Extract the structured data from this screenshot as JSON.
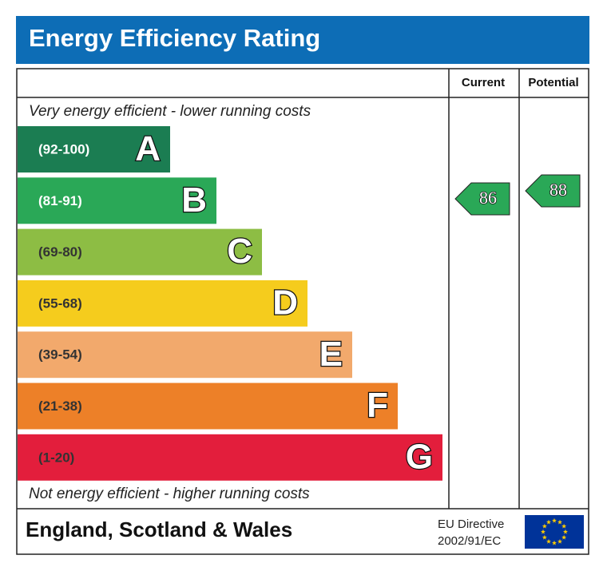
{
  "title": "Energy Efficiency Rating",
  "headers": [
    "Current",
    "Potential"
  ],
  "top_note": "Very energy efficient - lower running costs",
  "bottom_note": "Not energy efficient - higher running costs",
  "bands": [
    {
      "range": "(92-100)",
      "letter": "A",
      "color": "#1b7d52"
    },
    {
      "range": "(81-91)",
      "letter": "B",
      "color": "#2aa857"
    },
    {
      "range": "(69-80)",
      "letter": "C",
      "color": "#8dbd44"
    },
    {
      "range": "(55-68)",
      "letter": "D",
      "color": "#f5cc1d"
    },
    {
      "range": "(39-54)",
      "letter": "E",
      "color": "#f2a96c"
    },
    {
      "range": "(21-38)",
      "letter": "F",
      "color": "#ed8028"
    },
    {
      "range": "(1-20)",
      "letter": "G",
      "color": "#e31e3c"
    }
  ],
  "current": {
    "value": 86,
    "color": "#2aa857"
  },
  "potential": {
    "value": 88,
    "color": "#2aa857"
  },
  "footer": {
    "region": "England, Scotland & Wales",
    "directive": [
      "EU Directive",
      "2002/91/EC"
    ]
  }
}
